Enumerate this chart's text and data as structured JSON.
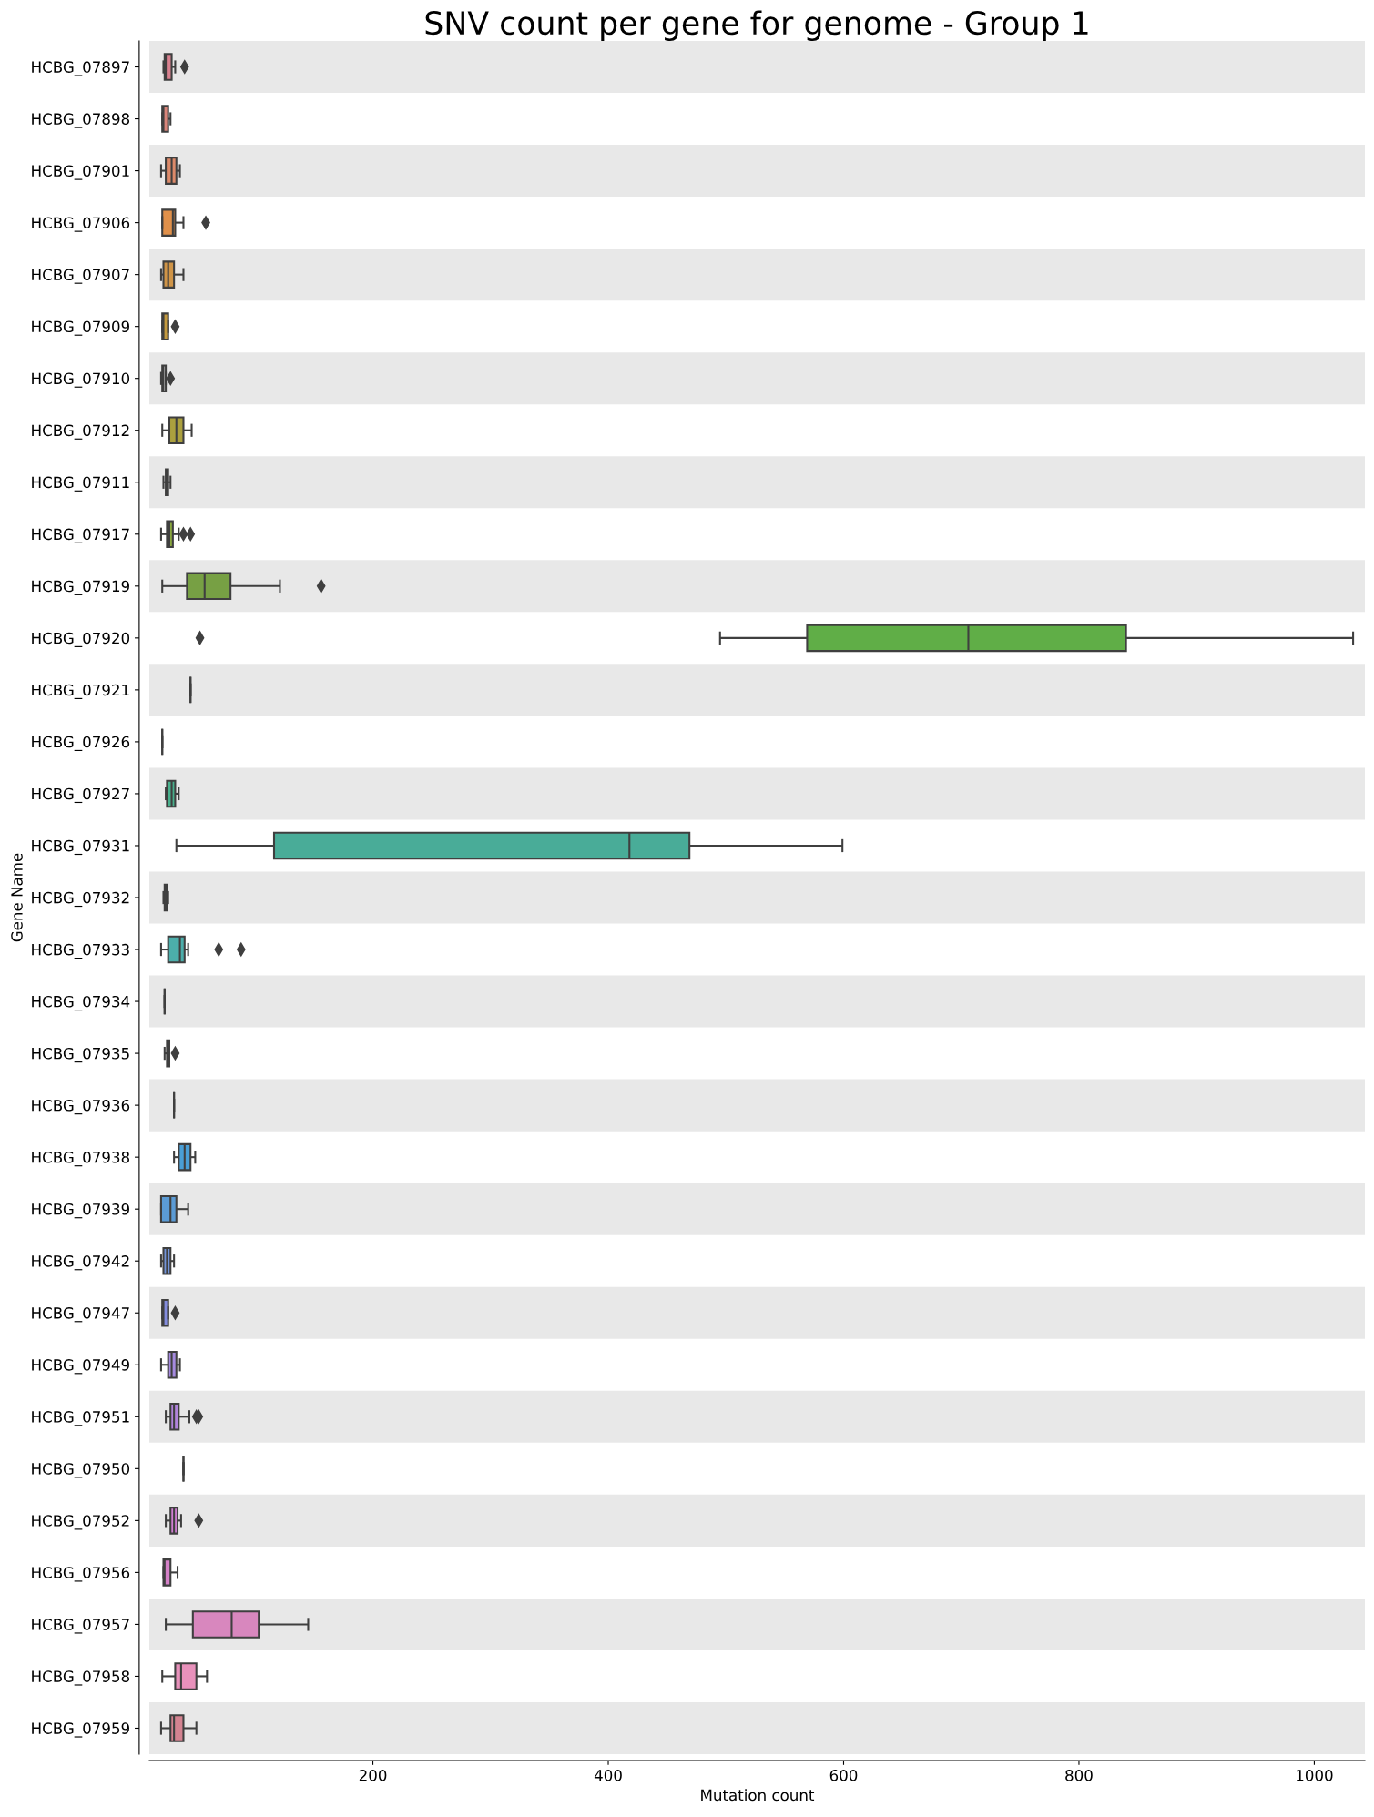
{
  "chart_data": {
    "type": "box",
    "orientation": "horizontal",
    "title": "SNV count per gene for genome - Group 1",
    "xlabel": "Mutation count",
    "ylabel": "Gene Name",
    "categories": [
      "HCBG_07897",
      "HCBG_07898",
      "HCBG_07901",
      "HCBG_07906",
      "HCBG_07907",
      "HCBG_07909",
      "HCBG_07910",
      "HCBG_07912",
      "HCBG_07911",
      "HCBG_07917",
      "HCBG_07919",
      "HCBG_07920",
      "HCBG_07921",
      "HCBG_07926",
      "HCBG_07927",
      "HCBG_07931",
      "HCBG_07932",
      "HCBG_07933",
      "HCBG_07934",
      "HCBG_07935",
      "HCBG_07936",
      "HCBG_07938",
      "HCBG_07939",
      "HCBG_07942",
      "HCBG_07947",
      "HCBG_07949",
      "HCBG_07951",
      "HCBG_07950",
      "HCBG_07952",
      "HCBG_07956",
      "HCBG_07957",
      "HCBG_07958",
      "HCBG_07959"
    ],
    "boxes": [
      {
        "low": 22,
        "q1": 23,
        "median": 24,
        "q3": 29,
        "high": 32,
        "outliers": [
          40
        ]
      },
      {
        "low": 21,
        "q1": 21,
        "median": 22,
        "q3": 26,
        "high": 28
      },
      {
        "low": 20,
        "q1": 24,
        "median": 29,
        "q3": 33,
        "high": 36
      },
      {
        "low": 21,
        "q1": 21,
        "median": 30,
        "q3": 32,
        "high": 39,
        "outliers": [
          58
        ]
      },
      {
        "low": 20,
        "q1": 22,
        "median": 26,
        "q3": 31,
        "high": 39
      },
      {
        "low": 21,
        "q1": 21,
        "median": 22,
        "q3": 26,
        "high": 26,
        "outliers": [
          32
        ]
      },
      {
        "low": 20,
        "q1": 21,
        "median": 22,
        "q3": 24,
        "high": 24,
        "outliers": [
          28
        ]
      },
      {
        "low": 21,
        "q1": 27,
        "median": 33,
        "q3": 39,
        "high": 46
      },
      {
        "low": 22,
        "q1": 24,
        "median": 25,
        "q3": 26,
        "high": 28
      },
      {
        "low": 20,
        "q1": 25,
        "median": 27,
        "q3": 30,
        "high": 35,
        "outliers": [
          39,
          45
        ]
      },
      {
        "low": 21,
        "q1": 42,
        "median": 57,
        "q3": 79,
        "high": 121,
        "outliers": [
          156
        ]
      },
      {
        "low": 495,
        "q1": 569,
        "median": 706,
        "q3": 840,
        "high": 1033,
        "outliers": [
          53
        ]
      },
      {
        "low": 45,
        "q1": 45,
        "median": 45,
        "q3": 45,
        "high": 45
      },
      {
        "low": 21,
        "q1": 21,
        "median": 21,
        "q3": 21,
        "high": 21
      },
      {
        "low": 24,
        "q1": 25,
        "median": 29,
        "q3": 32,
        "high": 35
      },
      {
        "low": 33,
        "q1": 116,
        "median": 418,
        "q3": 469,
        "high": 599
      },
      {
        "low": 22,
        "q1": 23,
        "median": 24,
        "q3": 25,
        "high": 26
      },
      {
        "low": 20,
        "q1": 26,
        "median": 36,
        "q3": 40,
        "high": 43,
        "outliers": [
          69,
          88
        ]
      },
      {
        "low": 23,
        "q1": 23,
        "median": 23,
        "q3": 23,
        "high": 23
      },
      {
        "low": 23,
        "q1": 25,
        "median": 26,
        "q3": 27,
        "high": 27,
        "outliers": [
          32
        ]
      },
      {
        "low": 31,
        "q1": 31,
        "median": 31,
        "q3": 31,
        "high": 31
      },
      {
        "low": 31,
        "q1": 35,
        "median": 40,
        "q3": 45,
        "high": 49
      },
      {
        "low": 20,
        "q1": 20,
        "median": 28,
        "q3": 33,
        "high": 43
      },
      {
        "low": 20,
        "q1": 22,
        "median": 25,
        "q3": 28,
        "high": 31
      },
      {
        "low": 21,
        "q1": 21,
        "median": 22,
        "q3": 26,
        "high": 26,
        "outliers": [
          32
        ]
      },
      {
        "low": 20,
        "q1": 26,
        "median": 29,
        "q3": 33,
        "high": 36
      },
      {
        "low": 24,
        "q1": 28,
        "median": 31,
        "q3": 35,
        "high": 44,
        "outliers": [
          50,
          52
        ]
      },
      {
        "low": 39,
        "q1": 39,
        "median": 39,
        "q3": 39,
        "high": 39
      },
      {
        "low": 24,
        "q1": 28,
        "median": 31,
        "q3": 34,
        "high": 37,
        "outliers": [
          52
        ]
      },
      {
        "low": 22,
        "q1": 22,
        "median": 23,
        "q3": 28,
        "high": 34
      },
      {
        "low": 24,
        "q1": 47,
        "median": 80,
        "q3": 103,
        "high": 145
      },
      {
        "low": 21,
        "q1": 32,
        "median": 37,
        "q3": 50,
        "high": 59
      },
      {
        "low": 20,
        "q1": 28,
        "median": 31,
        "q3": 39,
        "high": 50
      }
    ],
    "colors": [
      "#d9818f",
      "#d8857a",
      "#dc8a6a",
      "#e0904a",
      "#cf9447",
      "#c49a3f",
      null,
      "#aba03e",
      null,
      "#8aa83e",
      "#77a044",
      "#60ae47",
      null,
      null,
      "#48b08c",
      "#49ac98",
      null,
      "#4caeab",
      null,
      null,
      null,
      "#4a9fd6",
      "#5b9bd5",
      "#7394d8",
      "#838cdc",
      "#a58adf",
      "#b184dc",
      null,
      "#d07ed3",
      "#d581c8",
      "#d887be",
      "#e891bb",
      "#d48391"
    ],
    "xlim": [
      10,
      1043
    ],
    "xticks": [
      200,
      400,
      600,
      800,
      1000
    ],
    "marker": "diamond",
    "bands": [
      {
        "axis": "y",
        "from": "HCBG_07897",
        "to": "HCBG_07897",
        "color": "#e8e8e8"
      },
      {
        "axis": "y",
        "from": "HCBG_07901",
        "to": "HCBG_07901",
        "color": "#e8e8e8"
      },
      {
        "axis": "y",
        "from": "HCBG_07907",
        "to": "HCBG_07907",
        "color": "#e8e8e8"
      },
      {
        "axis": "y",
        "from": "HCBG_07910",
        "to": "HCBG_07910",
        "color": "#e8e8e8"
      },
      {
        "axis": "y",
        "from": "HCBG_07911",
        "to": "HCBG_07911",
        "color": "#e8e8e8"
      },
      {
        "axis": "y",
        "from": "HCBG_07919",
        "to": "HCBG_07919",
        "color": "#e8e8e8"
      },
      {
        "axis": "y",
        "from": "HCBG_07921",
        "to": "HCBG_07921",
        "color": "#e8e8e8"
      },
      {
        "axis": "y",
        "from": "HCBG_07927",
        "to": "HCBG_07927",
        "color": "#e8e8e8"
      },
      {
        "axis": "y",
        "from": "HCBG_07932",
        "to": "HCBG_07932",
        "color": "#e8e8e8"
      },
      {
        "axis": "y",
        "from": "HCBG_07934",
        "to": "HCBG_07934",
        "color": "#e8e8e8"
      },
      {
        "axis": "y",
        "from": "HCBG_07936",
        "to": "HCBG_07936",
        "color": "#e8e8e8"
      },
      {
        "axis": "y",
        "from": "HCBG_07939",
        "to": "HCBG_07939",
        "color": "#e8e8e8"
      },
      {
        "axis": "y",
        "from": "HCBG_07947",
        "to": "HCBG_07947",
        "color": "#e8e8e8"
      },
      {
        "axis": "y",
        "from": "HCBG_07951",
        "to": "HCBG_07951",
        "color": "#e8e8e8"
      },
      {
        "axis": "y",
        "from": "HCBG_07952",
        "to": "HCBG_07952",
        "color": "#e8e8e8"
      },
      {
        "axis": "y",
        "from": "HCBG_07957",
        "to": "HCBG_07957",
        "color": "#e8e8e8"
      },
      {
        "axis": "y",
        "from": "HCBG_07959",
        "to": "HCBG_07959",
        "color": "#e8e8e8"
      }
    ]
  }
}
